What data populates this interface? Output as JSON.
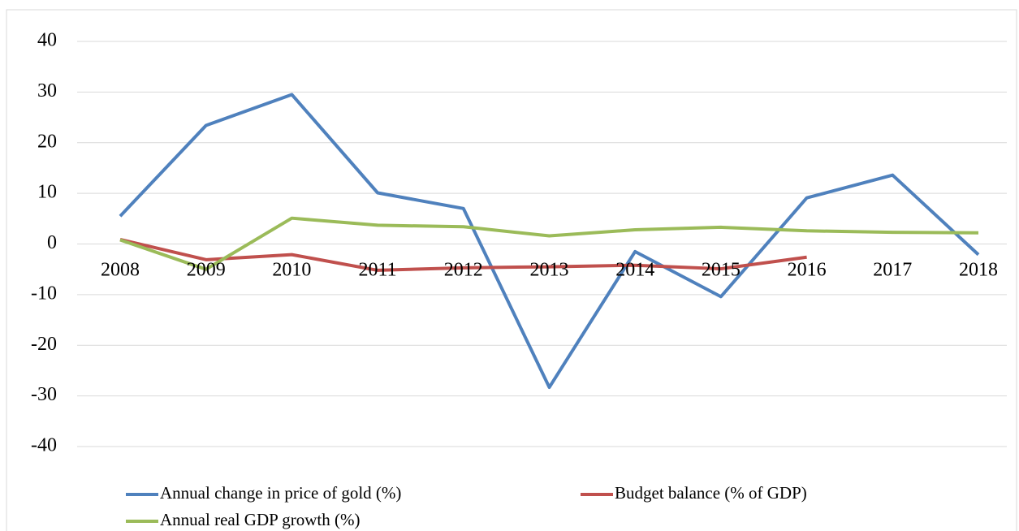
{
  "chart_data": {
    "type": "line",
    "categories": [
      "2008",
      "2009",
      "2010",
      "2011",
      "2012",
      "2013",
      "2014",
      "2015",
      "2016",
      "2017",
      "2018"
    ],
    "series": [
      {
        "name": "Annual change in price of gold (%)",
        "color": "#4f81bd",
        "values": [
          5.5,
          23.4,
          29.5,
          10.1,
          7.0,
          -28.3,
          -1.5,
          -10.4,
          9.1,
          13.6,
          -2.1
        ]
      },
      {
        "name": "Budget balance (% of GDP)",
        "color": "#c0504d",
        "values": [
          0.9,
          -3.1,
          -2.1,
          -5.2,
          -4.7,
          -4.5,
          -4.2,
          -4.9,
          -2.6,
          null,
          null
        ]
      },
      {
        "name": "Annual real GDP growth (%)",
        "color": "#9bbb59",
        "values": [
          0.8,
          -5.0,
          5.1,
          3.7,
          3.4,
          1.6,
          2.8,
          3.3,
          2.6,
          2.3,
          2.2
        ]
      }
    ],
    "ylim": [
      -40,
      40
    ],
    "yticks": [
      -40,
      -30,
      -20,
      -10,
      0,
      10,
      20,
      30,
      40
    ],
    "grid": true,
    "legend": "bottom"
  }
}
